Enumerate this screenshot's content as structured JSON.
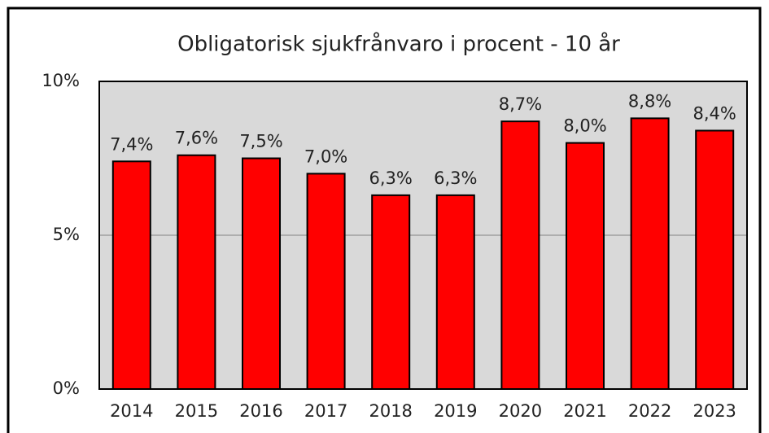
{
  "chart_data": {
    "type": "bar",
    "title": "Obligatorisk sjukfrånvaro i procent - 10 år",
    "categories": [
      "2014",
      "2015",
      "2016",
      "2017",
      "2018",
      "2019",
      "2020",
      "2021",
      "2022",
      "2023"
    ],
    "values": [
      7.4,
      7.6,
      7.5,
      7.0,
      6.3,
      6.3,
      8.7,
      8.0,
      8.8,
      8.4
    ],
    "value_labels": [
      "7,4%",
      "7,6%",
      "7,5%",
      "7,0%",
      "6,3%",
      "6,3%",
      "8,7%",
      "8,0%",
      "8,8%",
      "8,4%"
    ],
    "color": "#ff0000",
    "ylim": [
      0,
      10
    ],
    "yticks": [
      {
        "value": 0,
        "label": "0%"
      },
      {
        "value": 5,
        "label": "5%"
      },
      {
        "value": 10,
        "label": "10%"
      }
    ],
    "grid": true
  }
}
